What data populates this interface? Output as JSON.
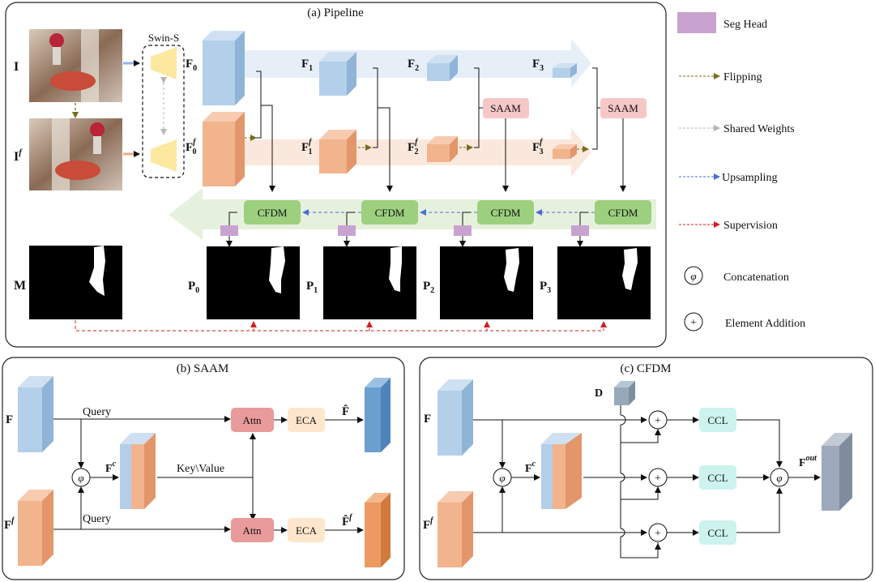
{
  "titles": {
    "pipeline": "(a) Pipeline",
    "saam": "(b) SAAM",
    "cfdm": "(c) CFDM"
  },
  "backbone": {
    "name": "Swin-S"
  },
  "inputs": {
    "image": "I",
    "image_flipped": "I",
    "flip_sup": "f"
  },
  "features": {
    "F0": {
      "base": "F",
      "sub": "0"
    },
    "F1": {
      "base": "F",
      "sub": "1"
    },
    "F2": {
      "base": "F",
      "sub": "2"
    },
    "F3": {
      "base": "F",
      "sub": "3"
    },
    "Ff0": {
      "base": "F",
      "sup": "f",
      "sub": "0"
    },
    "Ff1": {
      "base": "F",
      "sup": "f",
      "sub": "1"
    },
    "Ff2": {
      "base": "F",
      "sup": "f",
      "sub": "2"
    },
    "Ff3": {
      "base": "F",
      "sup": "f",
      "sub": "3"
    }
  },
  "modules": {
    "saam": "SAAM",
    "cfdm": "CFDM",
    "attn": "Attn",
    "eca": "ECA",
    "ccl": "CCL"
  },
  "masks": {
    "gt": "M",
    "p0": {
      "base": "P",
      "sub": "0"
    },
    "p1": {
      "base": "P",
      "sub": "1"
    },
    "p2": {
      "base": "P",
      "sub": "2"
    },
    "p3": {
      "base": "P",
      "sub": "3"
    }
  },
  "legend": {
    "seg_head": "Seg Head",
    "flipping": "Flipping",
    "shared_weights": "Shared Weights",
    "upsampling": "Upsampling",
    "supervision": "Supervision",
    "concat_symbol": "φ",
    "concatenation": "Concatenation",
    "add_symbol": "+",
    "element_addition": "Element Addition"
  },
  "saam": {
    "f": "F",
    "ff": "F",
    "ff_sup": "f",
    "fc": "F",
    "fc_sup": "c",
    "query1": "Query",
    "query2": "Query",
    "keyvalue": "Key\\Value",
    "fhat": "F̂",
    "ffhat": "F̂",
    "ffhat_sup": "f"
  },
  "cfdm": {
    "f": "F",
    "ff": "F",
    "ff_sup": "f",
    "fc": "F",
    "fc_sup": "c",
    "d": "D",
    "fout": "F",
    "fout_sup": "out"
  },
  "colors": {
    "blue": "#a9c8e6",
    "orange": "#efb08a",
    "cfdm": "#9ccf7e",
    "saam": "#f6c7c7",
    "seghead": "#c8a3cf",
    "attn": "#e99a9a",
    "eca": "#fde6cc",
    "ccl": "#ccf3ee",
    "flip": "#7a6a1e",
    "up": "#4a6fd0",
    "sup": "#d21f1f"
  }
}
